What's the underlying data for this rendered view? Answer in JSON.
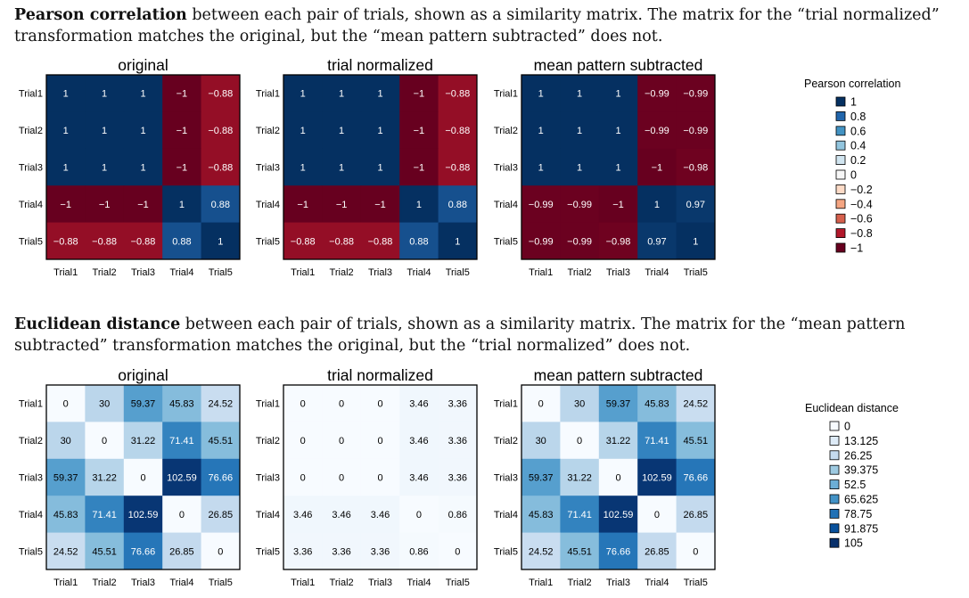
{
  "captions": [
    {
      "bold": "Pearson correlation",
      "text": " between each pair of trials, shown as a similarity matrix. The matrix for the “trial normalized” transformation matches the original, but the “mean pattern subtracted” does not."
    },
    {
      "bold": "Euclidean distance",
      "text": " between each pair of trials, shown as a similarity matrix. The matrix for the “mean pattern subtracted” transformation matches the original, but the “trial normalized” does not."
    }
  ],
  "chart_data": [
    {
      "type": "heatmap",
      "title": "original",
      "metric": "pearson",
      "rows": [
        "Trial1",
        "Trial2",
        "Trial3",
        "Trial4",
        "Trial5"
      ],
      "cols": [
        "Trial1",
        "Trial2",
        "Trial3",
        "Trial4",
        "Trial5"
      ],
      "values": [
        [
          1,
          1,
          1,
          -1,
          -0.88
        ],
        [
          1,
          1,
          1,
          -1,
          -0.88
        ],
        [
          1,
          1,
          1,
          -1,
          -0.88
        ],
        [
          -1,
          -1,
          -1,
          1,
          0.88
        ],
        [
          -0.88,
          -0.88,
          -0.88,
          0.88,
          1
        ]
      ],
      "vrange": [
        -1,
        1
      ]
    },
    {
      "type": "heatmap",
      "title": "trial normalized",
      "metric": "pearson",
      "rows": [
        "Trial1",
        "Trial2",
        "Trial3",
        "Trial4",
        "Trial5"
      ],
      "cols": [
        "Trial1",
        "Trial2",
        "Trial3",
        "Trial4",
        "Trial5"
      ],
      "values": [
        [
          1,
          1,
          1,
          -1,
          -0.88
        ],
        [
          1,
          1,
          1,
          -1,
          -0.88
        ],
        [
          1,
          1,
          1,
          -1,
          -0.88
        ],
        [
          -1,
          -1,
          -1,
          1,
          0.88
        ],
        [
          -0.88,
          -0.88,
          -0.88,
          0.88,
          1
        ]
      ],
      "vrange": [
        -1,
        1
      ]
    },
    {
      "type": "heatmap",
      "title": "mean pattern subtracted",
      "metric": "pearson",
      "rows": [
        "Trial1",
        "Trial2",
        "Trial3",
        "Trial4",
        "Trial5"
      ],
      "cols": [
        "Trial1",
        "Trial2",
        "Trial3",
        "Trial4",
        "Trial5"
      ],
      "values": [
        [
          1,
          1,
          1,
          -0.99,
          -0.99
        ],
        [
          1,
          1,
          1,
          -0.99,
          -0.99
        ],
        [
          1,
          1,
          1,
          -1,
          -0.98
        ],
        [
          -0.99,
          -0.99,
          -1,
          1,
          0.97
        ],
        [
          -0.99,
          -0.99,
          -0.98,
          0.97,
          1
        ]
      ],
      "vrange": [
        -1,
        1
      ]
    },
    {
      "type": "heatmap",
      "title": "original",
      "metric": "euclidean",
      "rows": [
        "Trial1",
        "Trial2",
        "Trial3",
        "Trial4",
        "Trial5"
      ],
      "cols": [
        "Trial1",
        "Trial2",
        "Trial3",
        "Trial4",
        "Trial5"
      ],
      "values": [
        [
          0,
          30,
          59.37,
          45.83,
          24.52
        ],
        [
          30,
          0,
          31.22,
          71.41,
          45.51
        ],
        [
          59.37,
          31.22,
          0,
          102.59,
          76.66
        ],
        [
          45.83,
          71.41,
          102.59,
          0,
          26.85
        ],
        [
          24.52,
          45.51,
          76.66,
          26.85,
          0
        ]
      ],
      "vrange": [
        0,
        105
      ]
    },
    {
      "type": "heatmap",
      "title": "trial normalized",
      "metric": "euclidean",
      "rows": [
        "Trial1",
        "Trial2",
        "Trial3",
        "Trial4",
        "Trial5"
      ],
      "cols": [
        "Trial1",
        "Trial2",
        "Trial3",
        "Trial4",
        "Trial5"
      ],
      "values": [
        [
          0,
          0,
          0,
          3.46,
          3.36
        ],
        [
          0,
          0,
          0,
          3.46,
          3.36
        ],
        [
          0,
          0,
          0,
          3.46,
          3.36
        ],
        [
          3.46,
          3.46,
          3.46,
          0,
          0.86
        ],
        [
          3.36,
          3.36,
          3.36,
          0.86,
          0
        ]
      ],
      "vrange": [
        0,
        105
      ]
    },
    {
      "type": "heatmap",
      "title": "mean pattern subtracted",
      "metric": "euclidean",
      "rows": [
        "Trial1",
        "Trial2",
        "Trial3",
        "Trial4",
        "Trial5"
      ],
      "cols": [
        "Trial1",
        "Trial2",
        "Trial3",
        "Trial4",
        "Trial5"
      ],
      "values": [
        [
          0,
          30,
          59.37,
          45.83,
          24.52
        ],
        [
          30,
          0,
          31.22,
          71.41,
          45.51
        ],
        [
          59.37,
          31.22,
          0,
          102.59,
          76.66
        ],
        [
          45.83,
          71.41,
          102.59,
          0,
          26.85
        ],
        [
          24.52,
          45.51,
          76.66,
          26.85,
          0
        ]
      ],
      "vrange": [
        0,
        105
      ]
    }
  ],
  "legends": [
    {
      "title": "Pearson correlation",
      "items": [
        {
          "label": "1",
          "color": "#053061"
        },
        {
          "label": "0.8",
          "color": "#2166ac"
        },
        {
          "label": "0.6",
          "color": "#4393c3"
        },
        {
          "label": "0.4",
          "color": "#92c5de"
        },
        {
          "label": "0.2",
          "color": "#d1e5f0"
        },
        {
          "label": "0",
          "color": "#f7f7f7"
        },
        {
          "label": "−0.2",
          "color": "#fddbc7"
        },
        {
          "label": "−0.4",
          "color": "#f4a582"
        },
        {
          "label": "−0.6",
          "color": "#d6604d"
        },
        {
          "label": "−0.8",
          "color": "#b2182b"
        },
        {
          "label": "−1",
          "color": "#67001f"
        }
      ]
    },
    {
      "title": "Euclidean distance",
      "items": [
        {
          "label": "0",
          "color": "#f7fbff"
        },
        {
          "label": "13.125",
          "color": "#deebf7"
        },
        {
          "label": "26.25",
          "color": "#c6dbef"
        },
        {
          "label": "39.375",
          "color": "#9ecae1"
        },
        {
          "label": "52.5",
          "color": "#6baed6"
        },
        {
          "label": "65.625",
          "color": "#4292c6"
        },
        {
          "label": "78.75",
          "color": "#2171b5"
        },
        {
          "label": "91.875",
          "color": "#08519c"
        },
        {
          "label": "105",
          "color": "#08306b"
        }
      ]
    }
  ]
}
